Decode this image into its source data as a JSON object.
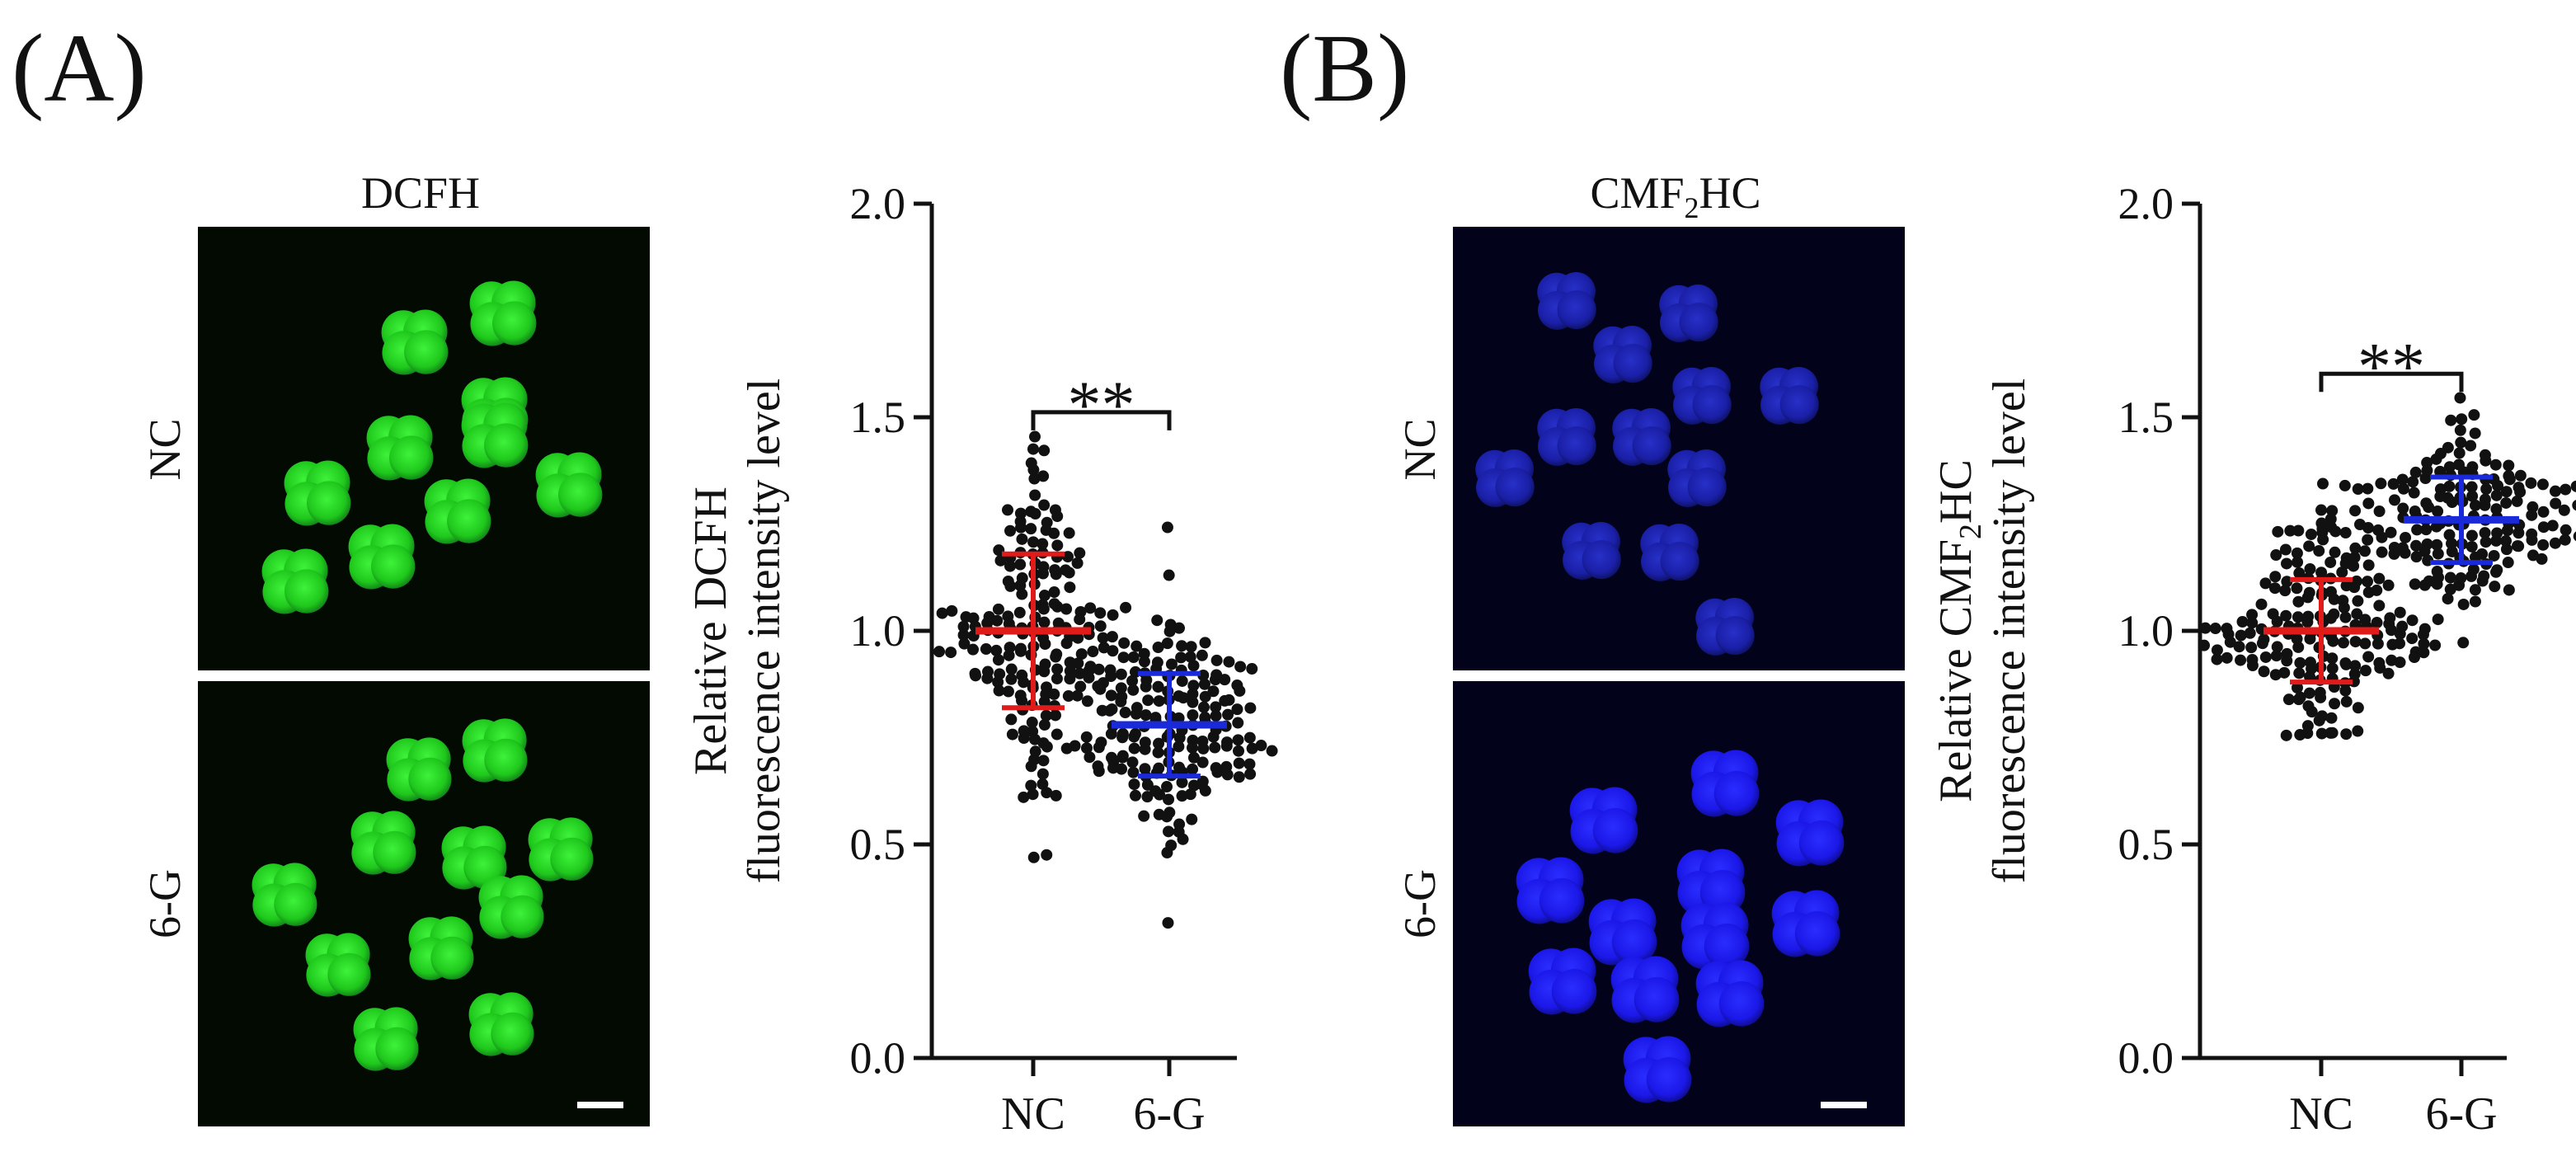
{
  "figure": {
    "panels": [
      {
        "letter": "(A)",
        "image_title": "DCFH",
        "row_labels": [
          "NC",
          "6-G"
        ],
        "micrograph_color": "#22d61f",
        "chart_title": "",
        "ylabel_line1": "Relative DCFH",
        "ylabel_line2": "fluorescence intensity level",
        "significance": "**"
      },
      {
        "letter": "(B)",
        "image_title": "CMF",
        "image_title_sub": "2",
        "image_title_tail": "HC",
        "row_labels": [
          "NC",
          "6-G"
        ],
        "micrograph_color": "#1d16e6",
        "ylabel_line1_pre": "Relative CMF",
        "ylabel_line1_sub": "2",
        "ylabel_line1_post": "HC",
        "ylabel_line2": "fluorescence intensity level",
        "significance": "**"
      }
    ]
  },
  "chart_data": [
    {
      "type": "scatter",
      "title": "",
      "xlabel": "",
      "ylabel": "Relative DCFH fluorescence intensity level",
      "categories": [
        "NC",
        "6-G"
      ],
      "ylim": [
        0.0,
        2.0
      ],
      "yticks": [
        "0.0",
        "0.5",
        "1.0",
        "1.5",
        "2.0"
      ],
      "series": [
        {
          "category": "NC",
          "mean": 1.0,
          "sd": 0.18,
          "min": 0.47,
          "max": 1.45,
          "n": 190,
          "bar_color": "#e11a1a"
        },
        {
          "category": "6-G",
          "mean": 0.78,
          "sd": 0.12,
          "min": 0.32,
          "max": 1.24,
          "n": 190,
          "bar_color": "#1a2ad8"
        }
      ],
      "significance": {
        "label": "**",
        "between": [
          "NC",
          "6-G"
        ]
      },
      "grid": false,
      "legend": "none"
    },
    {
      "type": "scatter",
      "title": "",
      "xlabel": "",
      "ylabel": "Relative CMF2HC fluorescence intensity level",
      "categories": [
        "NC",
        "6-G"
      ],
      "ylim": [
        0.0,
        2.0
      ],
      "yticks": [
        "0.0",
        "0.5",
        "1.0",
        "1.5",
        "2.0"
      ],
      "series": [
        {
          "category": "NC",
          "mean": 1.0,
          "sd": 0.12,
          "min": 0.76,
          "max": 1.34,
          "n": 190,
          "bar_color": "#e11a1a"
        },
        {
          "category": "6-G",
          "mean": 1.26,
          "sd": 0.1,
          "min": 0.97,
          "max": 1.54,
          "n": 190,
          "bar_color": "#1a2ad8"
        }
      ],
      "significance": {
        "label": "**",
        "between": [
          "NC",
          "6-G"
        ]
      },
      "grid": false,
      "legend": "none"
    }
  ]
}
